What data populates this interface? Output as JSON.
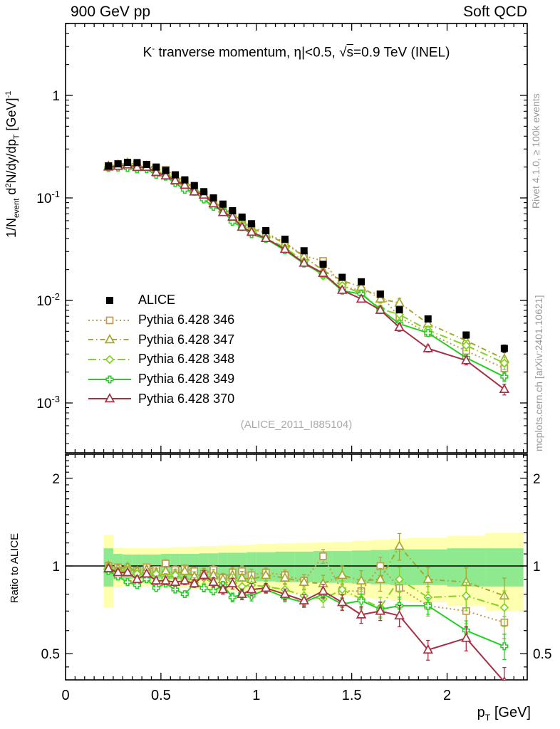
{
  "header": {
    "left": "900 GeV pp",
    "right": "Soft QCD"
  },
  "main": {
    "title_parts": [
      [
        "K"
      ],
      [
        "-",
        "sup"
      ],
      [
        " tranverse momentum, η|<0.5, "
      ],
      [
        "√"
      ],
      [
        "s",
        "ovl"
      ],
      [
        "=0.9 TeV (INEL)"
      ]
    ],
    "ylabel_parts": [
      [
        "1/N"
      ],
      [
        "event",
        "sub"
      ],
      [
        " d"
      ],
      [
        "2",
        "sup"
      ],
      [
        "N/dy/dp"
      ],
      [
        "T",
        "sub"
      ],
      [
        " [GeV]"
      ],
      [
        "-1",
        "sup"
      ]
    ],
    "watermark": "(ALICE_2011_I885104)"
  },
  "ratio_panel": {
    "ylabel": "Ratio to ALICE"
  },
  "credits": {
    "top": "Rivet 4.1.0, ≥ 100k events",
    "bottom": "mcplots.cern.ch [arXiv:2401.10621]"
  },
  "axes": {
    "xlabel_parts": [
      [
        "p"
      ],
      [
        "T",
        "sub"
      ],
      [
        " [GeV]"
      ]
    ]
  },
  "chart_data": {
    "type": "line",
    "title": "K- tranverse momentum, |eta|<0.5, sqrt(s)=0.9 TeV (INEL)",
    "xlabel": "pT [GeV]",
    "ylabel": "1/N_event d2N/dy/dpT [GeV]^-1",
    "ratio_label": "Ratio to ALICE",
    "x_axis": {
      "min": 0,
      "max": 2.42,
      "minor_step": 0.05,
      "ticks": [
        {
          "v": 0,
          "label": "0"
        },
        {
          "v": 0.5,
          "label": "0.5"
        },
        {
          "v": 1,
          "label": "1"
        },
        {
          "v": 1.5,
          "label": "1.5"
        },
        {
          "v": 2,
          "label": "2"
        }
      ]
    },
    "y_main_axis": {
      "scale": "log",
      "min": 0.00033,
      "max": 5,
      "ticks": [
        {
          "v": 1,
          "base": "1",
          "exp": ""
        },
        {
          "v": 0.1,
          "base": "10",
          "exp": "-1"
        },
        {
          "v": 0.01,
          "base": "10",
          "exp": "-2"
        },
        {
          "v": 0.001,
          "base": "10",
          "exp": "-3"
        }
      ]
    },
    "y_ratio_axis": {
      "scale": "log",
      "min": 0.406,
      "max": 2.42,
      "ticks": [
        {
          "v": 2,
          "label": "2"
        },
        {
          "v": 1,
          "label": "1"
        },
        {
          "v": 0.5,
          "label": "0.5"
        }
      ]
    },
    "pt": [
      0.225,
      0.275,
      0.325,
      0.375,
      0.425,
      0.475,
      0.525,
      0.575,
      0.625,
      0.675,
      0.725,
      0.775,
      0.825,
      0.875,
      0.925,
      0.975,
      1.05,
      1.15,
      1.25,
      1.35,
      1.45,
      1.55,
      1.65,
      1.75,
      1.9,
      2.1,
      2.3
    ],
    "bin_edges": [
      0.2,
      0.25,
      0.3,
      0.35,
      0.4,
      0.45,
      0.5,
      0.55,
      0.6,
      0.65,
      0.7,
      0.75,
      0.8,
      0.85,
      0.9,
      0.95,
      1.0,
      1.1,
      1.2,
      1.3,
      1.4,
      1.5,
      1.6,
      1.7,
      1.8,
      2.0,
      2.2,
      2.4
    ],
    "alice": {
      "id": "alice",
      "label": "ALICE",
      "color": "#000000",
      "marker": "square-filled",
      "dash": "none",
      "values": [
        0.205,
        0.215,
        0.222,
        0.221,
        0.212,
        0.2,
        0.185,
        0.168,
        0.15,
        0.132,
        0.115,
        0.1,
        0.087,
        0.075,
        0.065,
        0.056,
        0.048,
        0.0395,
        0.0305,
        0.0225,
        0.0168,
        0.0152,
        0.0115,
        0.0081,
        0.0066,
        0.0046,
        0.0034
      ],
      "err_frac": [
        0.04,
        0.04,
        0.04,
        0.04,
        0.04,
        0.04,
        0.04,
        0.04,
        0.04,
        0.04,
        0.04,
        0.04,
        0.04,
        0.04,
        0.04,
        0.04,
        0.04,
        0.04,
        0.04,
        0.04,
        0.04,
        0.04,
        0.04,
        0.04,
        0.06,
        0.07,
        0.08
      ]
    },
    "series": [
      {
        "id": "346",
        "label": "Pythia 6.428 346",
        "color": "#c19a54",
        "marker": "square-open",
        "dash": "dotted",
        "err_scale": 1.2,
        "ratio": [
          1.0,
          0.99,
          0.98,
          0.96,
          0.99,
          0.97,
          1.02,
          0.97,
          0.98,
          0.96,
          0.94,
          0.97,
          0.91,
          0.95,
          0.96,
          0.93,
          0.95,
          0.93,
          0.89,
          1.08,
          0.82,
          0.82,
          1.0,
          0.84,
          0.73,
          0.7,
          0.64
        ]
      },
      {
        "id": "347",
        "label": "Pythia 6.428 347",
        "color": "#a6a72b",
        "marker": "triangle-open",
        "dash": "dashdot",
        "err_scale": 1.5,
        "ratio": [
          1.0,
          0.98,
          0.99,
          0.96,
          0.97,
          0.95,
          0.96,
          0.94,
          0.96,
          0.92,
          0.94,
          0.93,
          0.9,
          0.93,
          0.91,
          0.9,
          0.93,
          0.91,
          0.88,
          0.87,
          0.93,
          0.89,
          0.9,
          1.17,
          0.9,
          0.88,
          0.79
        ]
      },
      {
        "id": "348",
        "label": "Pythia 6.428 348",
        "color": "#82d322",
        "marker": "diamond-open",
        "dash": "dashdot2",
        "err_scale": 1.4,
        "ratio": [
          0.98,
          0.96,
          0.97,
          0.94,
          0.93,
          0.94,
          0.91,
          0.93,
          0.9,
          0.88,
          0.91,
          0.87,
          0.84,
          0.89,
          0.85,
          0.86,
          0.85,
          0.83,
          0.79,
          0.77,
          0.83,
          0.77,
          0.72,
          0.9,
          0.78,
          0.79,
          0.72
        ]
      },
      {
        "id": "349",
        "label": "Pythia 6.428 349",
        "color": "#23cf23",
        "marker": "plus-open",
        "dash": "solid",
        "err_scale": 1.0,
        "ratio": [
          0.96,
          0.92,
          0.88,
          0.86,
          0.9,
          0.84,
          0.87,
          0.83,
          0.8,
          0.87,
          0.84,
          0.82,
          0.86,
          0.78,
          0.8,
          0.79,
          0.83,
          0.78,
          0.75,
          0.8,
          0.74,
          0.76,
          0.71,
          0.73,
          0.73,
          0.6,
          0.53
        ]
      },
      {
        "id": "370",
        "label": "Pythia 6.428 370",
        "color": "#a63044",
        "marker": "triangle-open",
        "dash": "solid",
        "err_scale": 1.2,
        "ratio": [
          0.98,
          0.95,
          0.95,
          0.9,
          0.94,
          0.89,
          0.89,
          0.88,
          0.89,
          0.87,
          0.93,
          0.88,
          0.83,
          0.87,
          0.8,
          0.83,
          0.84,
          0.8,
          0.76,
          0.82,
          0.75,
          0.68,
          0.7,
          0.675,
          0.515,
          0.565,
          0.4
        ]
      }
    ],
    "mc_err_frac": [
      0.02,
      0.02,
      0.02,
      0.02,
      0.02,
      0.02,
      0.025,
      0.025,
      0.025,
      0.025,
      0.03,
      0.03,
      0.03,
      0.035,
      0.035,
      0.04,
      0.03,
      0.035,
      0.04,
      0.045,
      0.05,
      0.055,
      0.06,
      0.07,
      0.065,
      0.08,
      0.1
    ],
    "bands": {
      "yellow": {
        "color": "#ffffb0",
        "half_width": [
          0.28,
          0.155,
          0.15,
          0.15,
          0.15,
          0.15,
          0.155,
          0.16,
          0.16,
          0.165,
          0.17,
          0.17,
          0.175,
          0.18,
          0.18,
          0.185,
          0.19,
          0.195,
          0.2,
          0.205,
          0.21,
          0.22,
          0.23,
          0.24,
          0.25,
          0.27,
          0.3
        ]
      },
      "green": {
        "color": "#8fe98f",
        "half_width": [
          0.15,
          0.1,
          0.095,
          0.095,
          0.095,
          0.095,
          0.1,
          0.1,
          0.1,
          0.1,
          0.105,
          0.105,
          0.11,
          0.11,
          0.11,
          0.115,
          0.115,
          0.12,
          0.12,
          0.125,
          0.125,
          0.13,
          0.135,
          0.14,
          0.14,
          0.15,
          0.15
        ]
      }
    },
    "ratio_reference_line": 1
  }
}
